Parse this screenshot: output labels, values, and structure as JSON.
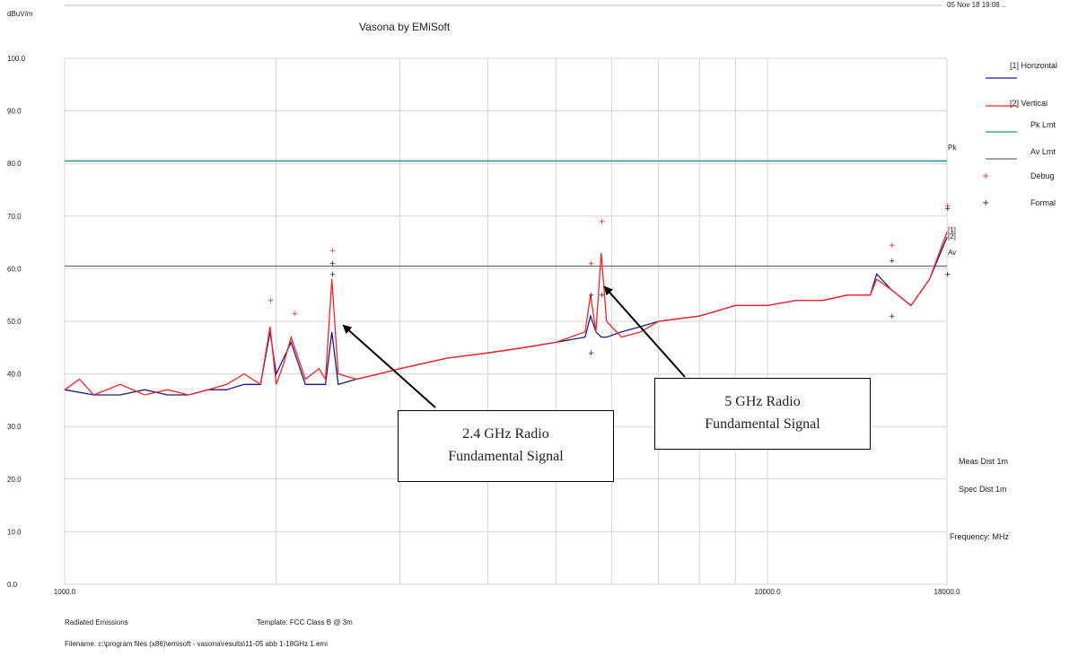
{
  "chart_data": {
    "type": "line",
    "title": "Vasona by EMiSoft",
    "timestamp": "05 Nov 18 19:08 ..",
    "ylabel": "dBuV/m",
    "xlabel": "Frequency: MHz",
    "x_scale": "log",
    "xlim": [
      1000,
      18000
    ],
    "ylim": [
      0,
      100
    ],
    "y_ticks": [
      "100.0",
      "90.0",
      "80.0",
      "70.0",
      "60.0",
      "50.0",
      "40.0",
      "30.0",
      "20.0",
      "10.0",
      "0.0"
    ],
    "x_ticks": [
      "1000.0",
      "10000.0",
      "18000.0"
    ],
    "grid": true,
    "legend_position": "right",
    "series": [
      {
        "name": "[1] Horizontal",
        "color": "#1a1a8c",
        "x": [
          1000,
          1100,
          1200,
          1300,
          1400,
          1500,
          1600,
          1700,
          1800,
          1900,
          1960,
          2000,
          2100,
          2200,
          2350,
          2400,
          2450,
          2600,
          2800,
          3000,
          3500,
          4000,
          4500,
          5000,
          5500,
          5600,
          5700,
          5800,
          5900,
          6200,
          6600,
          7000,
          8000,
          9000,
          10000,
          11000,
          12000,
          13000,
          14000,
          14300,
          15000,
          16000,
          17000,
          18000
        ],
        "y": [
          37,
          36,
          36,
          37,
          36,
          36,
          37,
          37,
          38,
          38,
          48,
          40,
          46,
          38,
          38,
          48,
          38,
          39,
          40,
          41,
          43,
          44,
          45,
          46,
          47,
          51,
          48,
          47,
          47,
          48,
          49,
          50,
          51,
          53,
          53,
          54,
          54,
          55,
          55,
          59,
          56,
          53,
          58,
          66
        ]
      },
      {
        "name": "[2] Vertical",
        "color": "#ff2020",
        "x": [
          1000,
          1050,
          1100,
          1200,
          1300,
          1400,
          1500,
          1600,
          1700,
          1800,
          1900,
          1960,
          2000,
          2050,
          2100,
          2200,
          2300,
          2350,
          2400,
          2450,
          2600,
          2800,
          3000,
          3500,
          4000,
          4500,
          5000,
          5500,
          5600,
          5700,
          5800,
          5900,
          6200,
          6600,
          7000,
          8000,
          9000,
          10000,
          11000,
          12000,
          13000,
          14000,
          14300,
          15000,
          16000,
          17000,
          18000
        ],
        "y": [
          37,
          39,
          36,
          38,
          36,
          37,
          36,
          37,
          38,
          40,
          38,
          49,
          38,
          42,
          47,
          39,
          41,
          39,
          58,
          40,
          39,
          40,
          41,
          43,
          44,
          45,
          46,
          48,
          55,
          48,
          63,
          50,
          47,
          48,
          50,
          51,
          53,
          53,
          54,
          54,
          55,
          55,
          58,
          56,
          53,
          58,
          67
        ]
      },
      {
        "name": "Pk Lmt",
        "color": "#1f8a8a",
        "x": [
          1000,
          18000
        ],
        "y": [
          80.5,
          80.5
        ]
      },
      {
        "name": "Av Lmt",
        "color": "#6a6a6a",
        "x": [
          1000,
          18000
        ],
        "y": [
          60.5,
          60.5
        ]
      }
    ],
    "markers": [
      {
        "name": "Debug",
        "color": "#ff2020",
        "points": [
          {
            "x": 1960,
            "y": 54
          },
          {
            "x": 2120,
            "y": 51.5
          },
          {
            "x": 2400,
            "y": 63.5
          },
          {
            "x": 5600,
            "y": 61
          },
          {
            "x": 5800,
            "y": 69
          },
          {
            "x": 15000,
            "y": 64.5
          },
          {
            "x": 18000,
            "y": 72
          }
        ]
      },
      {
        "name": "Formal",
        "color": "#222222",
        "points": [
          {
            "x": 2400,
            "y": 61
          },
          {
            "x": 2400,
            "y": 59
          },
          {
            "x": 5600,
            "y": 55
          },
          {
            "x": 5800,
            "y": 55
          },
          {
            "x": 5600,
            "y": 44
          },
          {
            "x": 15000,
            "y": 61.5
          },
          {
            "x": 15000,
            "y": 51
          },
          {
            "x": 18000,
            "y": 59
          },
          {
            "x": 18000,
            "y": 71.5
          }
        ]
      }
    ],
    "limit_labels": {
      "pk": "Pk",
      "av": "Av",
      "trace_markers": "[1]\n[2]"
    },
    "annotations": [
      {
        "text": "2.4 GHz Radio Fundamental Signal",
        "points_to_x": 2400,
        "points_to_y": 48
      },
      {
        "text": "5 GHz Radio Fundamental Signal",
        "points_to_x": 5800,
        "points_to_y": 55
      }
    ],
    "side_notes": [
      "Meas Dist 1m",
      "Spec Dist 1m"
    ]
  },
  "legend": {
    "horizontal": "[1] Horizontal",
    "vertical": "[2] Vertical",
    "pk_lmt": "Pk Lmt",
    "av_lmt": "Av Lmt",
    "debug": "Debug",
    "formal": "Formal",
    "marker_glyph": "+"
  },
  "footer": {
    "test": "Radiated Emissions",
    "template": "Template: FCC Class B @ 3m",
    "filename": "Filename: c:\\program files (x86)\\emisoft - vasona\\results\\11-05 abb 1-18GHz 1.emi"
  },
  "callouts": {
    "c24_line1": "2.4 GHz Radio",
    "c24_line2": "Fundamental Signal",
    "c5_line1": "5 GHz Radio",
    "c5_line2": "Fundamental Signal"
  }
}
